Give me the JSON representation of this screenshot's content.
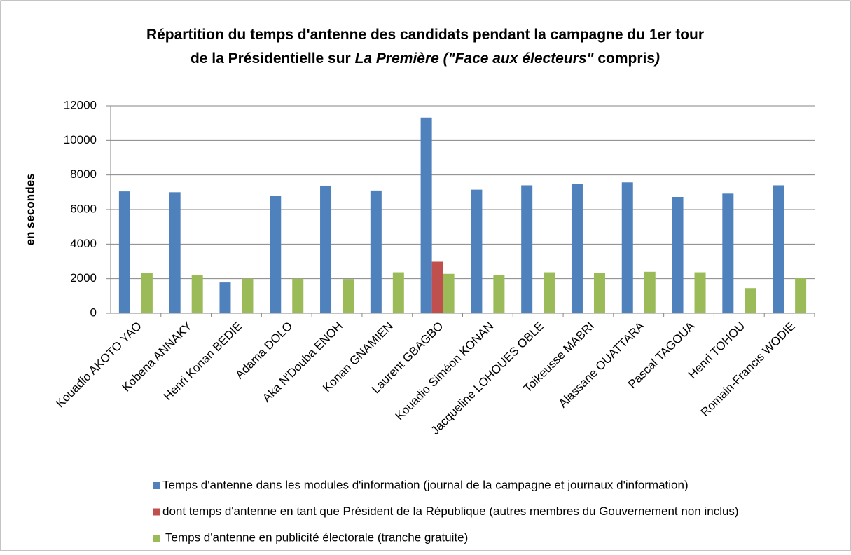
{
  "chart_data": {
    "type": "bar",
    "title_lines": [
      [
        {
          "text": "Répartition du temps d'antenne des candidats pendant la campagne du 1er tour",
          "italic": false
        }
      ],
      [
        {
          "text": "de la Présidentielle sur ",
          "italic": false
        },
        {
          "text": "La Première (\"Face aux électeurs\"",
          "italic": true
        },
        {
          "text": " compris",
          "italic": false
        },
        {
          "text": ")",
          "italic": true
        }
      ]
    ],
    "y_label": "en secondes",
    "categories": [
      "Kouadio AKOTO YAO",
      "Kobena ANNAKY",
      "Henri Konan BEDIE",
      "Adama DOLO",
      "Aka N'Douba ENOH",
      "Konan GNAMIEN",
      "Laurent GBAGBO",
      "Kouadio Siméon KONAN",
      "Jacqueline LOHOUES OBLE",
      "Toikeusse MABRI",
      "Alassane OUATTARA",
      "Pascal TAGOUA",
      "Henri TOHOU",
      "Romain-Francis WODIE"
    ],
    "series": [
      {
        "name": "Temps d'antenne dans les modules d'information (journal de la campagne et journaux d'information)",
        "color": "#4f81bd",
        "values": [
          7050,
          7000,
          1780,
          6800,
          7380,
          7100,
          11320,
          7150,
          7400,
          7480,
          7570,
          6730,
          6920,
          7400
        ]
      },
      {
        "name": "dont temps d'antenne  en tant que Président de la République (autres membres du Gouvernement non inclus)",
        "color": "#c0504d",
        "values": [
          null,
          null,
          null,
          null,
          null,
          null,
          2980,
          null,
          null,
          null,
          null,
          null,
          null,
          null
        ]
      },
      {
        "name": "Temps d'antenne en publicité électorale (tranche gratuite)",
        "color": "#9bbb59",
        "values": [
          2350,
          2230,
          2000,
          2000,
          1980,
          2370,
          2280,
          2200,
          2370,
          2320,
          2400,
          2370,
          1450,
          2030
        ]
      }
    ],
    "ylim": [
      0,
      12000
    ],
    "yticks": [
      0,
      2000,
      4000,
      6000,
      8000,
      10000,
      12000
    ],
    "grid": true
  }
}
